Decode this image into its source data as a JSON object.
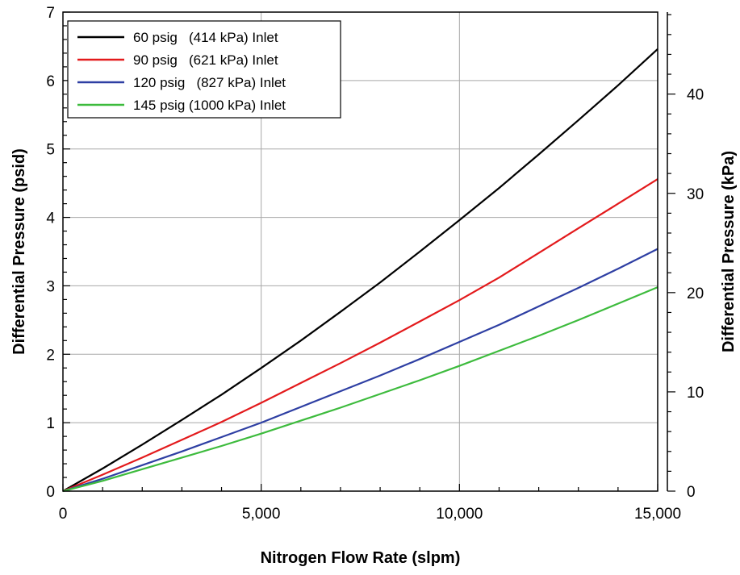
{
  "chart_data": {
    "type": "line",
    "title": "",
    "xlabel": "Nitrogen Flow Rate (slpm)",
    "ylabel": "Differential Pressure (psid)",
    "y2label": "Differential Pressure (kPa)",
    "xlim": [
      0,
      15000
    ],
    "ylim": [
      0,
      7
    ],
    "y2lim": [
      0,
      48.26
    ],
    "grid": true,
    "legend_position": "top-left",
    "x_ticks": [
      0,
      5000,
      10000,
      15000
    ],
    "x_tick_labels": [
      "0",
      "5,000",
      "10,000",
      "15,000"
    ],
    "y_ticks": [
      0,
      1,
      2,
      3,
      4,
      5,
      6,
      7
    ],
    "y_tick_labels": [
      "0",
      "1",
      "2",
      "3",
      "4",
      "5",
      "6",
      "7"
    ],
    "y2_ticks": [
      0,
      10,
      20,
      30,
      40
    ],
    "y2_tick_labels": [
      "0",
      "10",
      "20",
      "30",
      "40"
    ],
    "x": [
      0,
      1000,
      2000,
      3000,
      4000,
      5000,
      6000,
      7000,
      8000,
      9000,
      10000,
      11000,
      12000,
      13000,
      14000,
      15000
    ],
    "series": [
      {
        "name": "60 psig   (414 kPa) Inlet",
        "color": "#000000",
        "values": [
          0,
          0.33,
          0.68,
          1.04,
          1.41,
          1.8,
          2.2,
          2.62,
          3.05,
          3.5,
          3.96,
          4.43,
          4.92,
          5.42,
          5.93,
          6.46
        ]
      },
      {
        "name": "90 psig   (621 kPa) Inlet",
        "color": "#e31a1c",
        "values": [
          0,
          0.24,
          0.49,
          0.75,
          1.01,
          1.29,
          1.58,
          1.87,
          2.17,
          2.48,
          2.79,
          3.12,
          3.48,
          3.84,
          4.2,
          4.56
        ]
      },
      {
        "name": "120 psig   (827 kPa) Inlet",
        "color": "#2e3fa3",
        "values": [
          0,
          0.18,
          0.38,
          0.58,
          0.79,
          1.0,
          1.23,
          1.46,
          1.69,
          1.93,
          2.18,
          2.43,
          2.7,
          2.97,
          3.25,
          3.54
        ]
      },
      {
        "name": "145 psig (1000 kPa) Inlet",
        "color": "#3dbb3d",
        "values": [
          0,
          0.15,
          0.32,
          0.49,
          0.66,
          0.84,
          1.03,
          1.22,
          1.42,
          1.62,
          1.83,
          2.05,
          2.27,
          2.5,
          2.74,
          2.98
        ]
      }
    ]
  }
}
